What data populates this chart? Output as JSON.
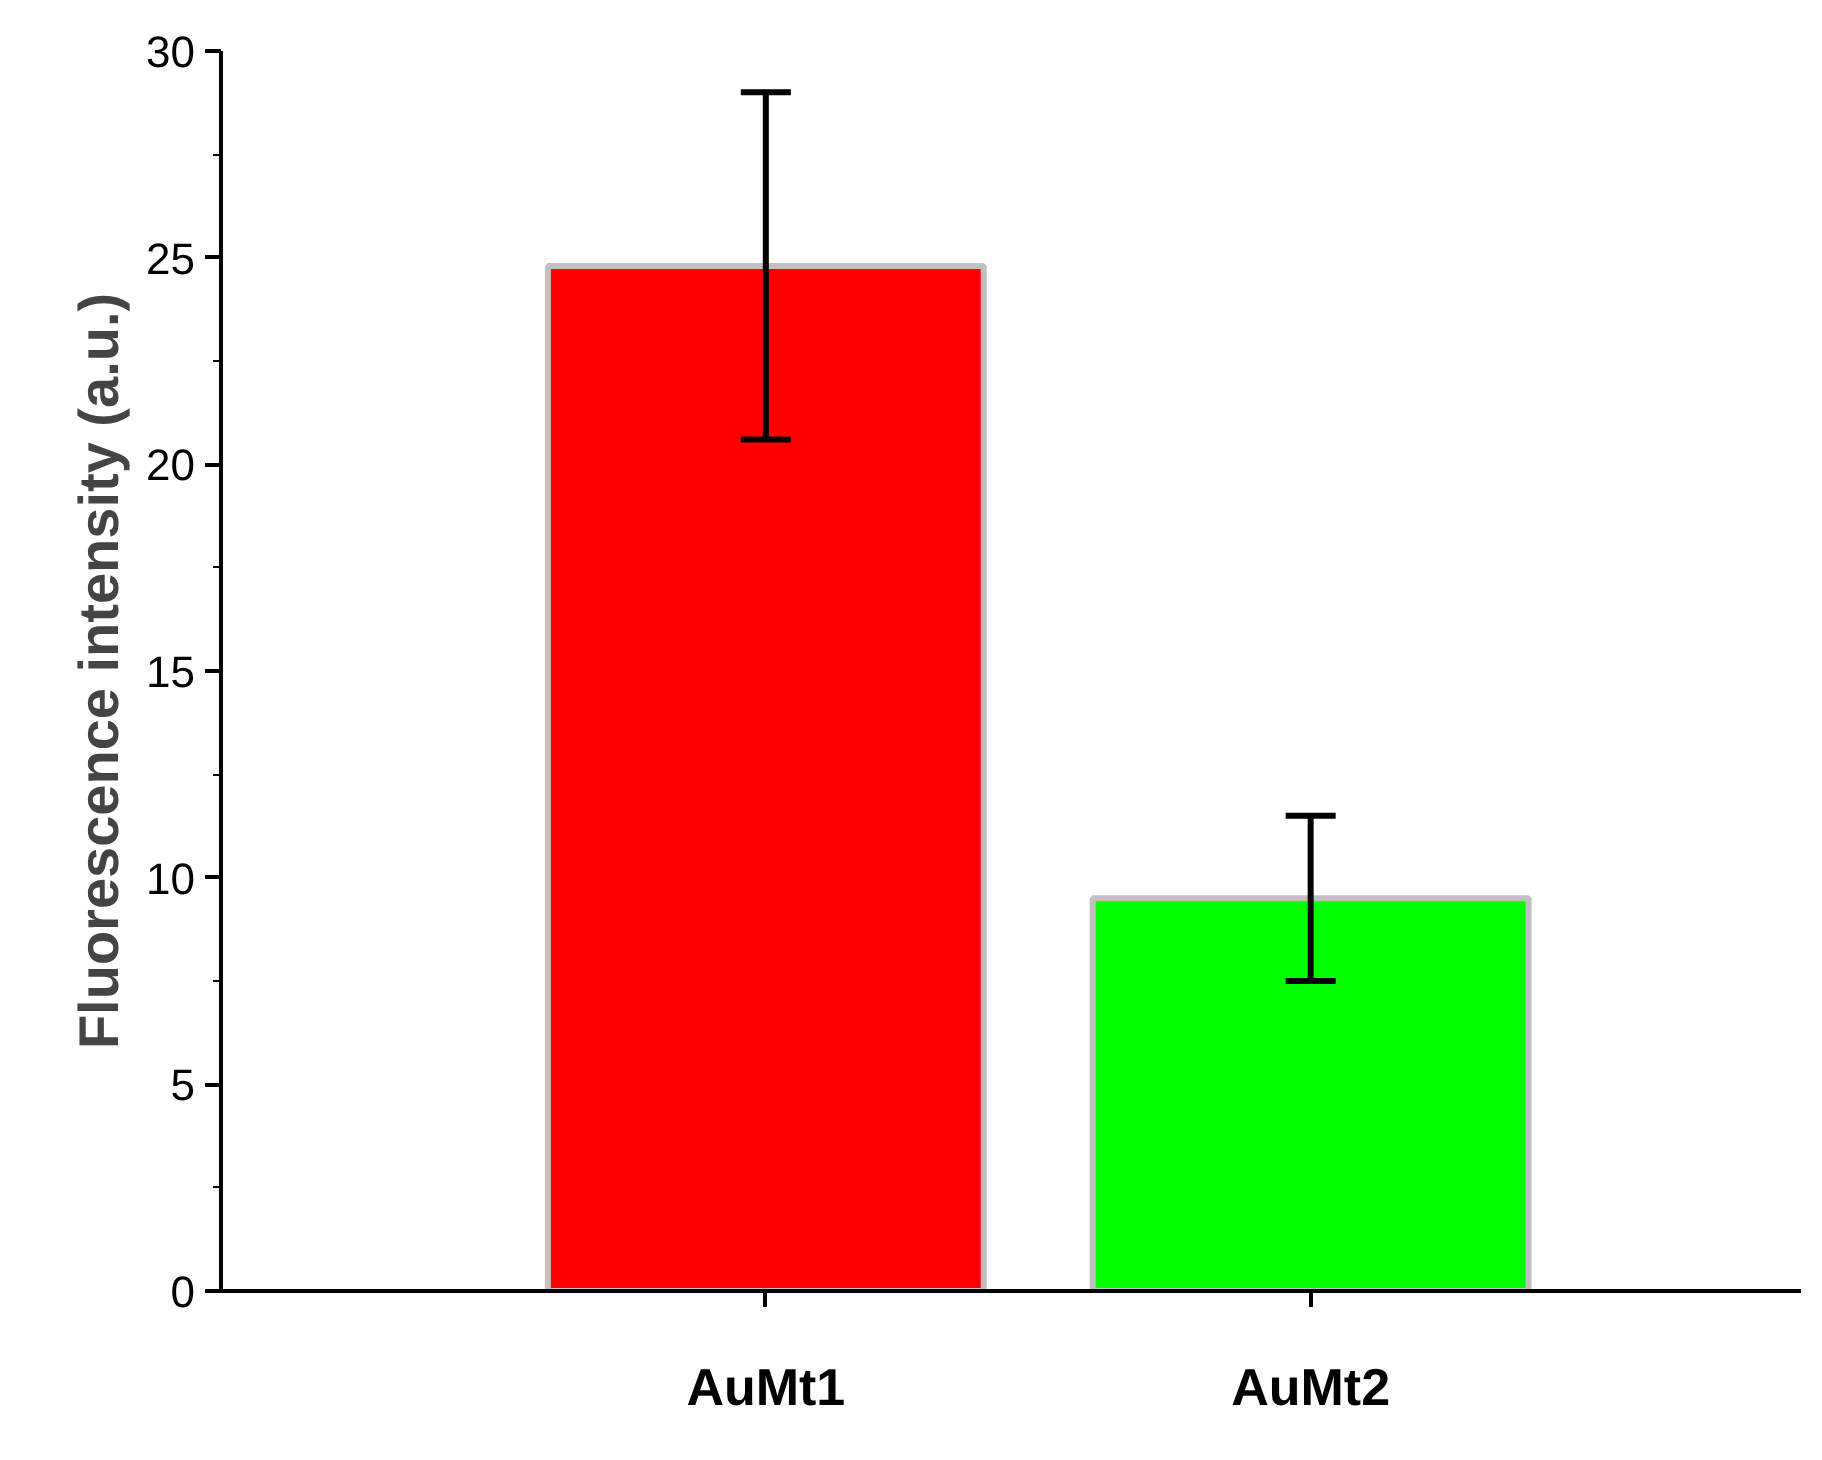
{
  "chart_data": {
    "type": "bar",
    "ylabel": "Fluorescence intensity (a.u.)",
    "categories": [
      "AuMt1",
      "AuMt2"
    ],
    "values": [
      24.8,
      9.5
    ],
    "errors": [
      4.2,
      2.0
    ],
    "colors": [
      "#ff0000",
      "#00ff00"
    ],
    "ylim": [
      0,
      30
    ],
    "yticks": [
      0,
      5,
      10,
      15,
      20,
      25,
      30
    ],
    "grid": false
  }
}
